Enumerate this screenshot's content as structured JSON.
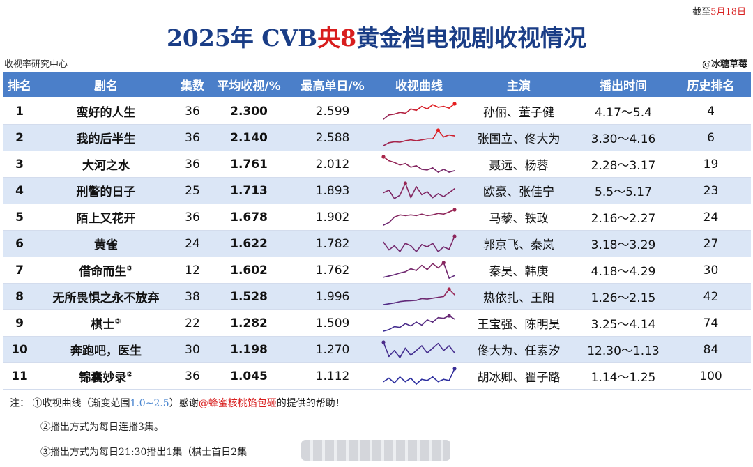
{
  "cutoff": {
    "prefix": "截至",
    "date": "5月18日"
  },
  "title": {
    "part1": "2025年 CVB",
    "part2": "央8",
    "part3": "黄金档电视剧收视情况"
  },
  "source": "收视率研究中心",
  "credit": "@冰糖草莓",
  "headers": [
    "排名",
    "剧名",
    "集数",
    "平均收视/%",
    "最高单日/%",
    "收视曲线",
    "主演",
    "播出时间",
    "历史排名"
  ],
  "chart_data": {
    "type": "table",
    "gradient_range": [
      1.0,
      2.5
    ],
    "gradient_colors": [
      "#2b2fa0",
      "#e51e1e"
    ],
    "rows": [
      {
        "rank": "1",
        "name": "蛮好的人生",
        "note": "",
        "episodes": "36",
        "avg": "2.300",
        "max": "2.599",
        "cast": "孙俪、董子健",
        "time": "4.17～5.4",
        "history": "4",
        "curve": [
          1.7,
          1.95,
          2.0,
          2.1,
          2.05,
          2.3,
          2.22,
          2.45,
          2.3,
          2.55,
          2.4,
          2.45,
          2.35,
          2.6
        ]
      },
      {
        "rank": "2",
        "name": "我的后半生",
        "note": "",
        "episodes": "36",
        "avg": "2.140",
        "max": "2.588",
        "cast": "张国立、佟大为",
        "time": "3.30～4.16",
        "history": "6",
        "curve": [
          1.8,
          1.95,
          2.0,
          1.98,
          2.05,
          2.1,
          2.05,
          2.1,
          2.15,
          2.15,
          2.59,
          2.25,
          2.35,
          2.3
        ]
      },
      {
        "rank": "3",
        "name": "大河之水",
        "note": "",
        "episodes": "36",
        "avg": "1.761",
        "max": "2.012",
        "cast": "聂远、杨蓉",
        "time": "2.28～3.17",
        "history": "19",
        "curve": [
          2.01,
          1.9,
          1.85,
          1.78,
          1.82,
          1.72,
          1.76,
          1.66,
          1.64,
          1.7,
          1.58,
          1.66,
          1.58,
          1.62
        ]
      },
      {
        "rank": "4",
        "name": "刑警的日子",
        "note": "",
        "episodes": "25",
        "avg": "1.713",
        "max": "1.893",
        "cast": "欧豪、张佳宁",
        "time": "5.5～5.17",
        "history": "23",
        "curve": [
          1.7,
          1.75,
          1.58,
          1.65,
          1.89,
          1.6,
          1.82,
          1.66,
          1.72,
          1.6,
          1.68,
          1.62,
          1.7,
          1.78
        ]
      },
      {
        "rank": "5",
        "name": "陌上又花开",
        "note": "",
        "episodes": "36",
        "avg": "1.678",
        "max": "1.902",
        "cast": "马藜、铁政",
        "time": "2.16～2.27",
        "history": "24",
        "curve": [
          1.48,
          1.55,
          1.7,
          1.76,
          1.74,
          1.76,
          1.74,
          1.78,
          1.74,
          1.76,
          1.8,
          1.78,
          1.84,
          1.9
        ]
      },
      {
        "rank": "6",
        "name": "黄雀",
        "note": "",
        "episodes": "24",
        "avg": "1.622",
        "max": "1.782",
        "cast": "郭京飞、秦岚",
        "time": "3.18～3.29",
        "history": "27",
        "curve": [
          1.68,
          1.55,
          1.62,
          1.52,
          1.66,
          1.62,
          1.52,
          1.64,
          1.6,
          1.66,
          1.52,
          1.6,
          1.56,
          1.78
        ]
      },
      {
        "rank": "7",
        "name": "借命而生",
        "note": "③",
        "episodes": "12",
        "avg": "1.602",
        "max": "1.762",
        "cast": "秦昊、韩庚",
        "time": "4.18～4.29",
        "history": "30",
        "curve": [
          1.42,
          1.45,
          1.48,
          1.52,
          1.55,
          1.62,
          1.58,
          1.7,
          1.6,
          1.74,
          1.64,
          1.76,
          1.4,
          1.46
        ]
      },
      {
        "rank": "8",
        "name": "无所畏惧之永不放弃",
        "note": "",
        "episodes": "38",
        "avg": "1.528",
        "max": "1.996",
        "cast": "热依扎、王阳",
        "time": "1.26～2.15",
        "history": "42",
        "curve": [
          1.28,
          1.32,
          1.36,
          1.42,
          1.45,
          1.46,
          1.48,
          1.56,
          1.54,
          1.58,
          1.62,
          1.66,
          2.0,
          1.74
        ]
      },
      {
        "rank": "9",
        "name": "棋士",
        "note": "③",
        "episodes": "22",
        "avg": "1.282",
        "max": "1.509",
        "cast": "王宝强、陈明昊",
        "time": "3.25～4.14",
        "history": "74",
        "curve": [
          1.1,
          1.14,
          1.22,
          1.2,
          1.3,
          1.24,
          1.34,
          1.26,
          1.4,
          1.34,
          1.46,
          1.44,
          1.51,
          1.42
        ]
      },
      {
        "rank": "10",
        "name": "奔跑吧，医生",
        "note": "",
        "episodes": "30",
        "avg": "1.198",
        "max": "1.270",
        "cast": "佟大为、任素汐",
        "time": "12.30～1.13",
        "history": "84",
        "curve": [
          1.27,
          1.15,
          1.2,
          1.14,
          1.22,
          1.16,
          1.2,
          1.24,
          1.18,
          1.22,
          1.26,
          1.2,
          1.24,
          1.18
        ]
      },
      {
        "rank": "11",
        "name": "锦囊妙录",
        "note": "②",
        "episodes": "36",
        "avg": "1.045",
        "max": "1.112",
        "cast": "胡冰卿、翟子路",
        "time": "1.14～1.25",
        "history": "100",
        "curve": [
          1.0,
          1.03,
          0.99,
          1.04,
          1.0,
          1.03,
          0.98,
          1.02,
          1.01,
          1.04,
          1.0,
          1.02,
          1.01,
          1.11
        ]
      }
    ]
  },
  "notes": {
    "label": "注：",
    "note1_a": "①收视曲线（渐变范围",
    "note1_range": "1.0~2.5",
    "note1_b": "）感谢",
    "note1_thanks": "@蜂蜜核桃馅包砸",
    "note1_c": "的提供的帮助！",
    "note2": "②播出方式为每日连播3集。",
    "note3": "③播出方式为每日21:30播出1集（棋士首日2集"
  }
}
